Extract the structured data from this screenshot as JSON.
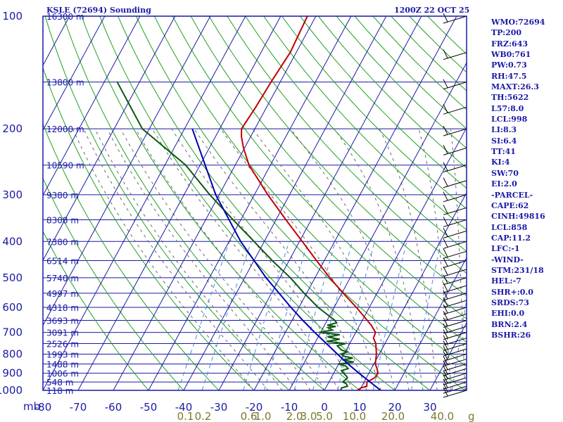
{
  "header": {
    "station": "KSLE (72694) Sounding",
    "time": "1200Z 22 OCT 25"
  },
  "indices": [
    "WMO:72694",
    "TP:200",
    "FRZ:643",
    "WB0:761",
    "PW:0.73",
    "RH:47.5",
    "MAXT:26.3",
    "TH:5622",
    "L57:8.0",
    "LCL:998",
    "LI:8.3",
    "SI:6.4",
    "TT:41",
    "KI:4",
    "SW:70",
    "EI:2.0",
    "-PARCEL-",
    "CAPE:62",
    "CINH:49816",
    "LCL:858",
    "CAP:11.2",
    "LFC:-1",
    "-WIND-",
    "STM:231/18",
    "HEL:-7",
    "SHR+:0.0",
    "SRDS:73",
    "EHI:0.0",
    "BRN:2.4",
    "BSHR:26"
  ],
  "colors": {
    "frame": "#1a1aa6",
    "grid": "#1a1aa6",
    "label": "#1a1aa6",
    "dry_adiabat": "#21a021",
    "moist_adiabat": "#6a6a6a",
    "mixing_ratio": "#4a8ad8",
    "temperature": "#c00000",
    "dewpoint": "#0b5a0b",
    "parcel": "#0000b0",
    "wind_barb": "#000000"
  },
  "chart_data": {
    "type": "line",
    "title": "KSLE (72694) Sounding",
    "subtitle": "1200Z 22 OCT 25",
    "xlabel": "",
    "ylabel": "mb",
    "x_axis_unit": "°C",
    "y_scale": "log",
    "ylim": [
      1000,
      100
    ],
    "pressure_ticks": [
      100,
      200,
      300,
      400,
      500,
      600,
      700,
      800,
      900,
      1000
    ],
    "temperature_ticks": [
      -80,
      -70,
      -60,
      -50,
      -40,
      -30,
      -20,
      -10,
      0,
      10,
      20,
      30,
      40
    ],
    "temperature_tick_labels": [
      "-80",
      "-70",
      "-60",
      "-50",
      "-40",
      "-30",
      "-20",
      "-10",
      "0",
      "10",
      "20",
      "30"
    ],
    "height_labels": [
      "16300 m",
      "13800 m",
      "12000 m",
      "10590 m",
      "9380 m",
      "8308 m",
      "7380 m",
      "6514 m",
      "5740 m",
      "4997 m",
      "4318 m",
      "3693 m",
      "3091 m",
      "2526 m",
      "1993 m",
      "1488 m",
      "1006 m",
      "548 m",
      "118 m"
    ],
    "height_label_pressures": [
      100,
      150,
      200,
      250,
      300,
      350,
      400,
      450,
      500,
      550,
      600,
      650,
      700,
      750,
      800,
      850,
      900,
      950,
      1000
    ],
    "mixing_ratio_labels": [
      "0.1",
      "0.2",
      "0.6",
      "1.0",
      "2.0",
      "3.0",
      "5.0",
      "10.0",
      "20.0",
      "40.0"
    ],
    "mixing_ratio_unit": "g/kg",
    "mixing_ratio_label_temps": [
      -39.5,
      -34.5,
      -21.5,
      -17.5,
      -8.5,
      -4.5,
      0.0,
      8.5,
      19.5,
      33.5
    ],
    "wind_barbs": {
      "speed_unit": "kt"
    },
    "series": [
      {
        "id": "temperature",
        "pressure": [
          1000,
          985,
          975,
          950,
          925,
          900,
          875,
          850,
          800,
          750,
          725,
          700,
          670,
          650,
          600,
          550,
          500,
          450,
          400,
          350,
          300,
          250,
          225,
          210,
          200,
          175,
          150,
          125,
          100
        ],
        "temp": [
          9.4,
          10,
          11.4,
          10.8,
          12.4,
          12.6,
          11.6,
          10.4,
          9.2,
          7.4,
          5.9,
          5.6,
          3.3,
          1.4,
          -3.7,
          -9.6,
          -15.8,
          -22.2,
          -29.2,
          -37.2,
          -46.2,
          -56.1,
          -60.3,
          -62.6,
          -63.8,
          -63.1,
          -62.6,
          -61.7,
          -62.4
        ]
      },
      {
        "id": "dewpoint",
        "pressure": [
          1000,
          985,
          975,
          960,
          950,
          935,
          925,
          915,
          900,
          885,
          875,
          860,
          850,
          840,
          830,
          820,
          810,
          800,
          790,
          780,
          770,
          760,
          750,
          740,
          730,
          720,
          710,
          700,
          690,
          680,
          675,
          670,
          660,
          650,
          600,
          550,
          500,
          450,
          400,
          350,
          300,
          250,
          200,
          150
        ],
        "temp": [
          4.6,
          4.5,
          5.9,
          5.2,
          3.9,
          4.4,
          4.6,
          4.0,
          2.8,
          1.8,
          3.4,
          2.2,
          -0.1,
          4.0,
          0.5,
          3.1,
          0.2,
          -0.9,
          0.6,
          -1.4,
          -2.3,
          -3.2,
          -1.2,
          -6.9,
          -3.5,
          -7.3,
          -4.2,
          -10.4,
          -7.0,
          -8.6,
          -6.6,
          -9.2,
          -6.9,
          -7.8,
          -14.6,
          -20.7,
          -27.0,
          -34.8,
          -42.9,
          -52.2,
          -62.7,
          -74.1,
          -92.0,
          -106.3
        ]
      },
      {
        "id": "parcel",
        "pressure": [
          1000,
          950,
          900,
          858,
          800,
          700,
          650,
          600,
          500,
          400,
          300,
          200
        ],
        "temp": [
          16.0,
          11.7,
          7.2,
          3.4,
          -1.9,
          -11.7,
          -16.9,
          -22.3,
          -33.9,
          -46.7,
          -61.0,
          -77.8
        ]
      }
    ]
  }
}
